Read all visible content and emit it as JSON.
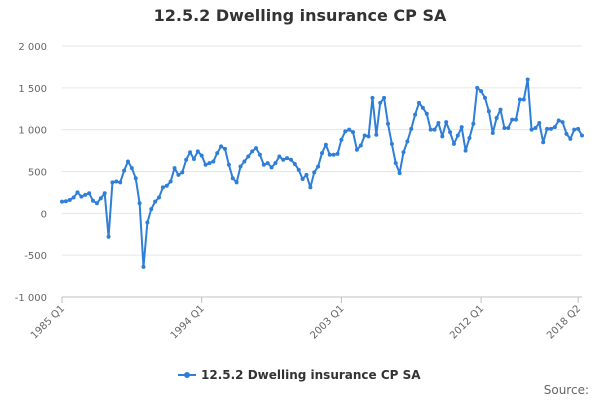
{
  "chart_data": {
    "type": "line",
    "title": "12.5.2 Dwelling insurance CP SA",
    "xlabel": "",
    "ylabel": "",
    "ylim": [
      -1000,
      2000
    ],
    "y_ticks": [
      "-1 000",
      "-500",
      "0",
      "500",
      "1 000",
      "1 500",
      "2 000"
    ],
    "x_tick_labels": [
      "1985 Q1",
      "1994 Q1",
      "2003 Q1",
      "2012 Q1",
      "2018 Q2"
    ],
    "grid": true,
    "legend_position": "bottom",
    "color": "#2f7ed8",
    "source_label": "Source:",
    "series": [
      {
        "name": "12.5.2 Dwelling insurance CP SA",
        "start": "1985 Q1",
        "frequency": "quarterly",
        "values": [
          140,
          145,
          160,
          190,
          250,
          200,
          220,
          240,
          150,
          120,
          180,
          240,
          -280,
          370,
          380,
          370,
          510,
          620,
          540,
          420,
          120,
          -640,
          -110,
          50,
          140,
          190,
          310,
          330,
          380,
          540,
          460,
          490,
          640,
          730,
          650,
          740,
          690,
          580,
          600,
          620,
          720,
          800,
          770,
          580,
          420,
          370,
          560,
          620,
          680,
          740,
          780,
          700,
          580,
          600,
          550,
          600,
          680,
          640,
          660,
          640,
          590,
          520,
          410,
          460,
          310,
          490,
          560,
          720,
          820,
          700,
          700,
          710,
          880,
          980,
          1000,
          970,
          760,
          810,
          930,
          920,
          1380,
          940,
          1320,
          1380,
          1070,
          830,
          600,
          480,
          730,
          860,
          1010,
          1180,
          1320,
          1260,
          1190,
          1000,
          1000,
          1080,
          920,
          1090,
          970,
          830,
          930,
          1030,
          750,
          900,
          1070,
          1500,
          1460,
          1380,
          1220,
          960,
          1140,
          1240,
          1020,
          1020,
          1120,
          1120,
          1360,
          1360,
          1600,
          1000,
          1020,
          1080,
          850,
          1010,
          1010,
          1030,
          1110,
          1090,
          950,
          890,
          1000,
          1010,
          930
        ]
      }
    ]
  }
}
